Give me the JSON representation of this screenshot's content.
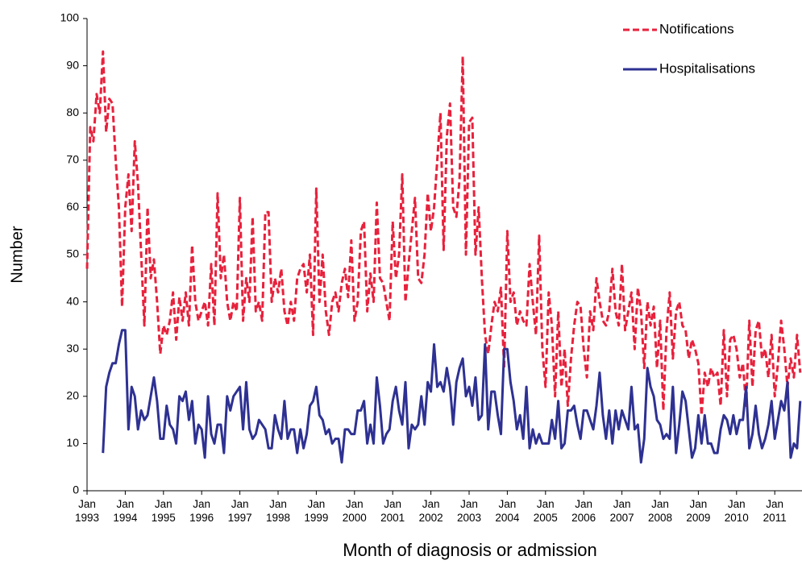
{
  "chart_data": {
    "type": "line",
    "ylabel": "Number",
    "xlabel": "Month of diagnosis or admission",
    "ylim": [
      0,
      100
    ],
    "yticks": [
      0,
      10,
      20,
      30,
      40,
      50,
      60,
      70,
      80,
      90,
      100
    ],
    "grid": false,
    "legend": "upper right",
    "categories": [
      "Jan 1993",
      null,
      null,
      null,
      null,
      null,
      null,
      null,
      null,
      null,
      null,
      null,
      "Jan 1994",
      null,
      null,
      null,
      null,
      null,
      null,
      null,
      null,
      null,
      null,
      null,
      "Jan 1995",
      null,
      null,
      null,
      null,
      null,
      null,
      null,
      null,
      null,
      null,
      null,
      "Jan 1996",
      null,
      null,
      null,
      null,
      null,
      null,
      null,
      null,
      null,
      null,
      null,
      "Jan 1997",
      null,
      null,
      null,
      null,
      null,
      null,
      null,
      null,
      null,
      null,
      null,
      "Jan 1998",
      null,
      null,
      null,
      null,
      null,
      null,
      null,
      null,
      null,
      null,
      null,
      "Jan 1999",
      null,
      null,
      null,
      null,
      null,
      null,
      null,
      null,
      null,
      null,
      null,
      "Jan 2000",
      null,
      null,
      null,
      null,
      null,
      null,
      null,
      null,
      null,
      null,
      null,
      "Jan 2001",
      null,
      null,
      null,
      null,
      null,
      null,
      null,
      null,
      null,
      null,
      null,
      "Jan 2002",
      null,
      null,
      null,
      null,
      null,
      null,
      null,
      null,
      null,
      null,
      null,
      "Jan 2003",
      null,
      null,
      null,
      null,
      null,
      null,
      null,
      null,
      null,
      null,
      null,
      "Jan 2004",
      null,
      null,
      null,
      null,
      null,
      null,
      null,
      null,
      null,
      null,
      null,
      "Jan 2005",
      null,
      null,
      null,
      null,
      null,
      null,
      null,
      null,
      null,
      null,
      null,
      "Jan 2006",
      null,
      null,
      null,
      null,
      null,
      null,
      null,
      null,
      null,
      null,
      null,
      "Jan 2007",
      null,
      null,
      null,
      null,
      null,
      null,
      null,
      null,
      null,
      null,
      null,
      "Jan 2008",
      null,
      null,
      null,
      null,
      null,
      null,
      null,
      null,
      null,
      null,
      null,
      "Jan 2009",
      null,
      null,
      null,
      null,
      null,
      null,
      null,
      null,
      null,
      null,
      null,
      "Jan 2010",
      null,
      null,
      null,
      null,
      null,
      null,
      null,
      null,
      null,
      null,
      null,
      "Jan 2011",
      null,
      null,
      null,
      null,
      null,
      null,
      null,
      null
    ],
    "series": [
      {
        "name": "Notifications",
        "color": "#e8213c",
        "dashed": true,
        "values": [
          47,
          77,
          74,
          84,
          80,
          93,
          76,
          83,
          82,
          70,
          60,
          39,
          60,
          67,
          55,
          74,
          65,
          50,
          35,
          60,
          45,
          49,
          40,
          29,
          35,
          33,
          36,
          42,
          32,
          41,
          36,
          42,
          35,
          52,
          40,
          36,
          38,
          40,
          35,
          48,
          35,
          63,
          45,
          50,
          40,
          36,
          40,
          38,
          62,
          36,
          45,
          40,
          58,
          38,
          40,
          36,
          59,
          59,
          40,
          45,
          42,
          47,
          38,
          35,
          40,
          36,
          45,
          47,
          48,
          42,
          50,
          33,
          64,
          40,
          50,
          38,
          33,
          40,
          42,
          38,
          44,
          47,
          41,
          53,
          36,
          40,
          55,
          57,
          38,
          46,
          40,
          61,
          45,
          44,
          40,
          36,
          57,
          45,
          50,
          67,
          40,
          48,
          55,
          62,
          45,
          44,
          50,
          63,
          55,
          60,
          70,
          80,
          51,
          75,
          82,
          60,
          58,
          66,
          92,
          50,
          78,
          79,
          50,
          60,
          45,
          33,
          29,
          35,
          40,
          38,
          43,
          26,
          55,
          40,
          42,
          35,
          38,
          36,
          35,
          48,
          40,
          33,
          54,
          30,
          22,
          42,
          35,
          20,
          38,
          22,
          30,
          18,
          28,
          35,
          40,
          39,
          30,
          24,
          38,
          34,
          45,
          40,
          36,
          35,
          38,
          47,
          38,
          35,
          48,
          34,
          38,
          42,
          30,
          43,
          38,
          26,
          40,
          35,
          39,
          26,
          36,
          17,
          34,
          42,
          28,
          38,
          40,
          35,
          34,
          28,
          32,
          30,
          27,
          16,
          25,
          22,
          26,
          24,
          25,
          18,
          34,
          20,
          32,
          33,
          30,
          24,
          27,
          18,
          36,
          22,
          34,
          36,
          28,
          30,
          24,
          33,
          20,
          27,
          36,
          30,
          22,
          28,
          24,
          33,
          25
        ]
      },
      {
        "name": "Hospitalisations",
        "color": "#2e3192",
        "dashed": false,
        "values": [
          null,
          null,
          null,
          null,
          null,
          8,
          22,
          25,
          27,
          27,
          31,
          34,
          34,
          13,
          22,
          20,
          13,
          17,
          15,
          16,
          20,
          24,
          19,
          11,
          11,
          18,
          14,
          13,
          10,
          20,
          19,
          21,
          15,
          19,
          10,
          14,
          13,
          7,
          20,
          12,
          10,
          14,
          14,
          8,
          20,
          17,
          20,
          21,
          22,
          13,
          23,
          13,
          11,
          12,
          15,
          14,
          13,
          9,
          9,
          16,
          13,
          11,
          19,
          11,
          13,
          13,
          8,
          13,
          9,
          12,
          18,
          19,
          22,
          16,
          15,
          12,
          13,
          10,
          11,
          11,
          6,
          13,
          13,
          12,
          12,
          17,
          17,
          19,
          10,
          14,
          10,
          24,
          18,
          10,
          12,
          13,
          19,
          22,
          17,
          14,
          23,
          9,
          14,
          13,
          14,
          20,
          14,
          23,
          21,
          31,
          22,
          23,
          21,
          26,
          22,
          14,
          23,
          26,
          28,
          20,
          22,
          18,
          24,
          15,
          16,
          31,
          13,
          21,
          21,
          16,
          12,
          30,
          30,
          23,
          19,
          13,
          16,
          11,
          22,
          9,
          13,
          10,
          12,
          10,
          10,
          10,
          15,
          11,
          19,
          9,
          10,
          17,
          17,
          18,
          14,
          11,
          17,
          17,
          15,
          13,
          18,
          25,
          16,
          11,
          17,
          10,
          17,
          13,
          17,
          15,
          13,
          22,
          13,
          14,
          6,
          11,
          26,
          22,
          20,
          15,
          14,
          11,
          12,
          11,
          22,
          8,
          14,
          21,
          19,
          13,
          7,
          9,
          16,
          10,
          16,
          10,
          10,
          8,
          8,
          13,
          16,
          15,
          12,
          16,
          12,
          15,
          15,
          22,
          9,
          12,
          18,
          12,
          9,
          11,
          14,
          19,
          11,
          15,
          19,
          17,
          23,
          7,
          10,
          9,
          19
        ]
      }
    ]
  }
}
